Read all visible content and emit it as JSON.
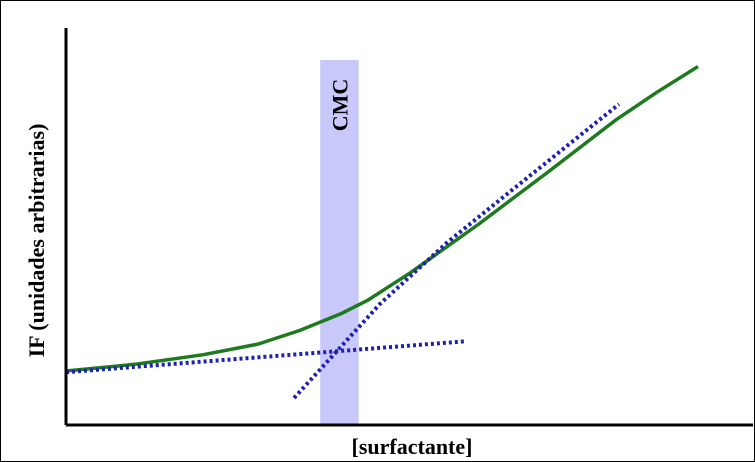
{
  "chart_data": {
    "type": "line",
    "xlabel": "[surfactante]",
    "ylabel": "IF (unidades arbitrarias)",
    "band": {
      "label": "CMC",
      "x_from": 37.0,
      "x_to": 42.6,
      "color": "#c8c8fa"
    },
    "xlim": [
      0,
      100
    ],
    "ylim": [
      0,
      100
    ],
    "series": [
      {
        "style": "solid",
        "color": "#1e7a1e",
        "points": [
          [
            0,
            13.6
          ],
          [
            10,
            15.3
          ],
          [
            20,
            17.7
          ],
          [
            28,
            20.4
          ],
          [
            34,
            23.8
          ],
          [
            40,
            28.0
          ],
          [
            44,
            31.5
          ],
          [
            50,
            38.2
          ],
          [
            60,
            50.5
          ],
          [
            70,
            63.5
          ],
          [
            80,
            76.8
          ],
          [
            86,
            83.8
          ],
          [
            92,
            90.3
          ]
        ]
      },
      {
        "style": "dotted",
        "color": "#2020b0",
        "points": [
          [
            0,
            13.3
          ],
          [
            58.3,
            21.1
          ]
        ]
      },
      {
        "style": "dotted",
        "color": "#2020b0",
        "points": [
          [
            33.2,
            6.8
          ],
          [
            45.7,
            30.5
          ],
          [
            55.5,
            46.0
          ],
          [
            64.5,
            58.6
          ],
          [
            73.0,
            70.4
          ],
          [
            80.5,
            80.8
          ]
        ]
      }
    ]
  }
}
